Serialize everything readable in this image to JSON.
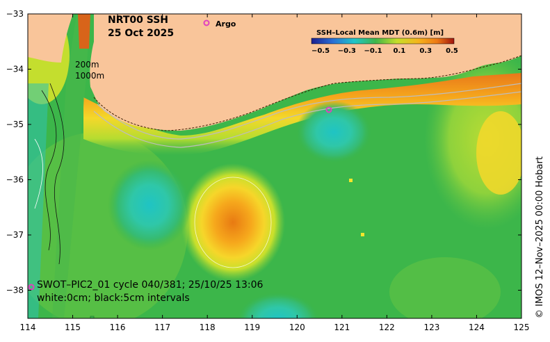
{
  "title_line1": "NRT00 SSH",
  "title_line2": "25 Oct 2025",
  "argo_legend": "Argo",
  "colorbar": {
    "title": "SSH–Local Mean MDT (0.6m) [m]",
    "ticks": [
      "−0.5",
      "−0.3",
      "−0.1",
      "0.1",
      "0.3",
      "0.5"
    ]
  },
  "depth_labels": [
    "200m",
    "1000m"
  ],
  "swot_line": "SWOT–PIC2_01 cycle 040/381; 25/10/25 13:06",
  "contour_line": "white:0cm; black:5cm intervals",
  "credit": "© IMOS 12–Nov–2025 00:00 Hobart",
  "axes": {
    "x_ticks": [
      "114",
      "115",
      "116",
      "117",
      "118",
      "119",
      "120",
      "121",
      "122",
      "123",
      "124",
      "125"
    ],
    "y_ticks": [
      "−33",
      "−34",
      "−35",
      "−36",
      "−37",
      "−38"
    ]
  },
  "colors": {
    "land": "#f9c59a",
    "ocean_base": "#39b54a",
    "argo": "#e040c0"
  }
}
